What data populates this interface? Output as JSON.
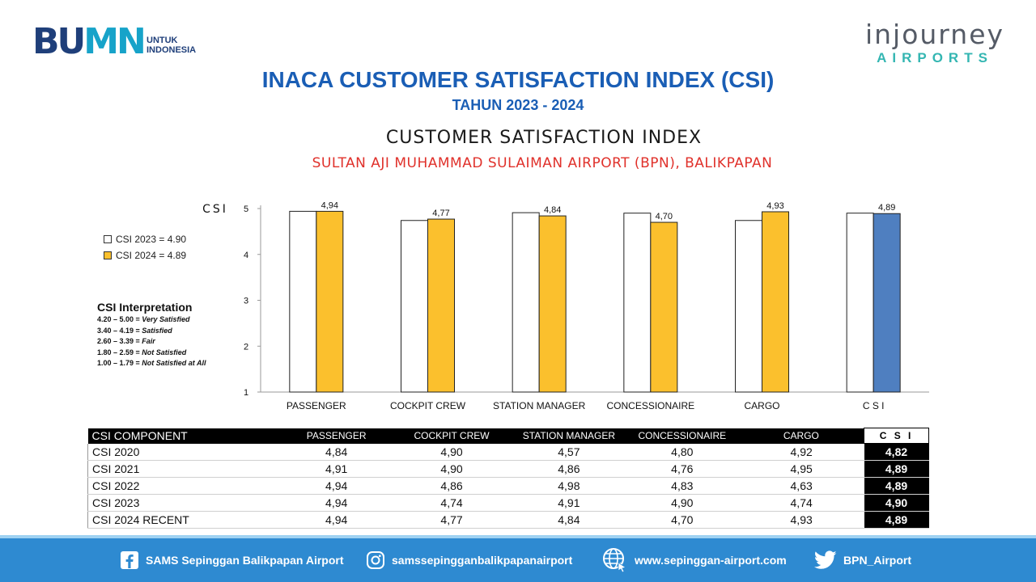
{
  "header": {
    "bumn_logo": {
      "word_left": "BU",
      "word_right": "MN",
      "untuk": "UNTUK",
      "indonesia": "INDONESIA"
    },
    "injourney_logo": {
      "word": "injourney",
      "airports": "AIRPORTS"
    },
    "title": "INACA CUSTOMER SATISFACTION INDEX (CSI)",
    "subtitle": "TAHUN 2023 - 2024"
  },
  "chart_data": {
    "type": "bar",
    "title": "CUSTOMER SATISFACTION INDEX",
    "subtitle": "SULTAN AJI MUHAMMAD SULAIMAN AIRPORT (BPN), BALIKPAPAN",
    "ylabel": "CSI",
    "ylim": [
      1,
      5
    ],
    "yticks": [
      "1",
      "2",
      "3",
      "4",
      "5"
    ],
    "categories": [
      "PASSENGER",
      "COCKPIT CREW",
      "STATION MANAGER",
      "CONCESSIONAIRE",
      "CARGO",
      "C S I"
    ],
    "series": [
      {
        "name": "CSI 2023 = 4.90",
        "color": "#ffffff",
        "values": [
          4.94,
          4.74,
          4.91,
          4.9,
          4.74,
          4.9
        ]
      },
      {
        "name": "CSI 2024 = 4.89",
        "color": "#fbc02d",
        "highlight_color": "#4f7fc0",
        "values": [
          4.94,
          4.77,
          4.84,
          4.7,
          4.93,
          4.89
        ]
      }
    ],
    "data_labels": [
      "4,94",
      "4,77",
      "4,84",
      "4,70",
      "4,93",
      "4,89"
    ],
    "grid": false,
    "legend": "left"
  },
  "interpretation": {
    "title": "CSI Interpretation",
    "rows": [
      {
        "range": "4.20 – 5.00 = ",
        "label": "Very Satisfied"
      },
      {
        "range": "3.40 – 4.19 = ",
        "label": "Satisfied"
      },
      {
        "range": "2.60 – 3.39 = ",
        "label": "Fair"
      },
      {
        "range": "1.80 – 2.59 = ",
        "label": "Not Satisfied"
      },
      {
        "range": "1.00 – 1.79 = ",
        "label": "Not Satisfied at All"
      }
    ]
  },
  "table": {
    "headers": [
      "CSI COMPONENT",
      "PASSENGER",
      "COCKPIT CREW",
      "STATION MANAGER",
      "CONCESSIONAIRE",
      "CARGO",
      "C S I"
    ],
    "rows": [
      [
        "CSI 2020",
        "4,84",
        "4,90",
        "4,57",
        "4,80",
        "4,92",
        "4,82"
      ],
      [
        "CSI 2021",
        "4,91",
        "4,90",
        "4,86",
        "4,76",
        "4,95",
        "4,89"
      ],
      [
        "CSI 2022",
        "4,94",
        "4,86",
        "4,98",
        "4,83",
        "4,63",
        "4,89"
      ],
      [
        "CSI 2023",
        "4,94",
        "4,74",
        "4,91",
        "4,90",
        "4,74",
        "4,90"
      ],
      [
        "CSI 2024 RECENT",
        "4,94",
        "4,77",
        "4,84",
        "4,70",
        "4,93",
        "4,89"
      ]
    ]
  },
  "footer": {
    "facebook": "SAMS Sepinggan Balikpapan Airport",
    "instagram": "samssepingganbalikpapanairport",
    "website": "www.sepinggan-airport.com",
    "twitter": "BPN_Airport"
  }
}
